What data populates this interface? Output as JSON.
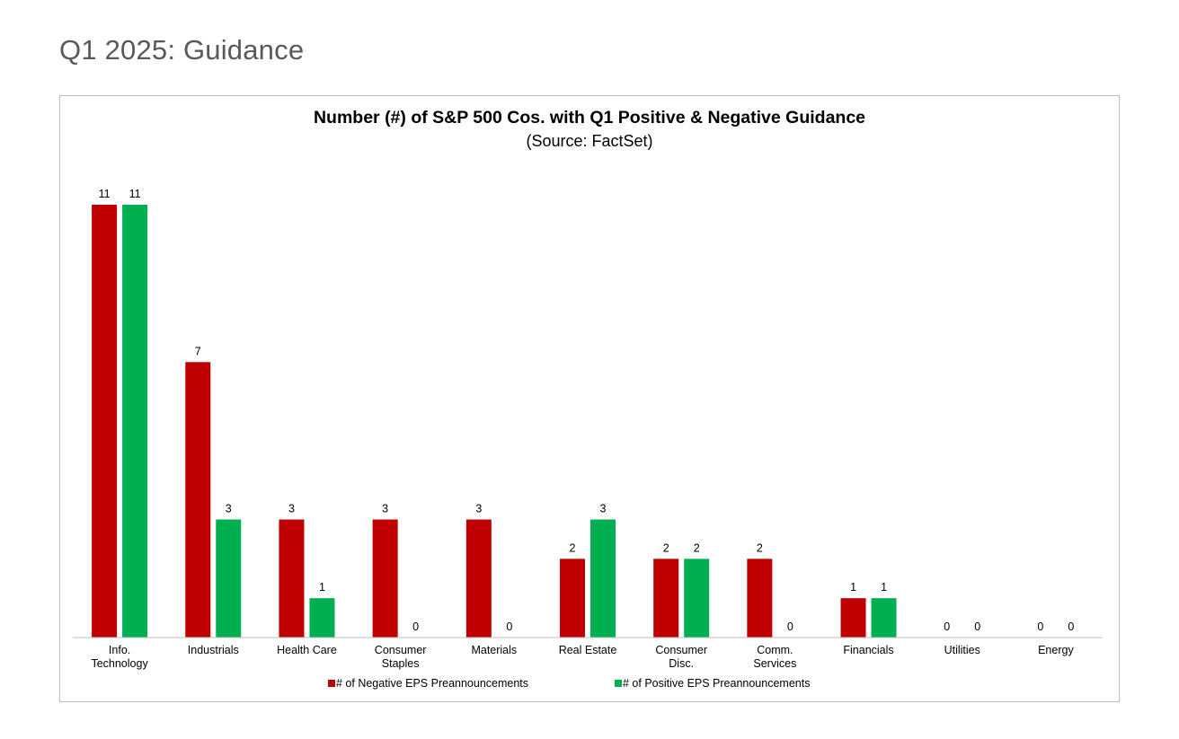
{
  "page": {
    "title": "Q1 2025: Guidance"
  },
  "colors": {
    "negative": "#c00000",
    "positive": "#00b050",
    "axis": "#bfbfbf",
    "text": "#000000"
  },
  "chart_data": {
    "type": "bar",
    "title": "Number (#) of S&P 500 Cos. with Q1 Positive & Negative Guidance",
    "subtitle": "(Source: FactSet)",
    "categories": [
      [
        "Info.",
        "Technology"
      ],
      [
        "Industrials"
      ],
      [
        "Health Care"
      ],
      [
        "Consumer",
        "Staples"
      ],
      [
        "Materials"
      ],
      [
        "Real Estate"
      ],
      [
        "Consumer",
        "Disc."
      ],
      [
        "Comm.",
        "Services"
      ],
      [
        "Financials"
      ],
      [
        "Utilities"
      ],
      [
        "Energy"
      ]
    ],
    "series": [
      {
        "name": "# of Negative EPS Preannouncements",
        "values": [
          11,
          7,
          3,
          3,
          3,
          2,
          2,
          2,
          1,
          0,
          0
        ],
        "color": "#c00000"
      },
      {
        "name": "# of Positive EPS Preannouncements",
        "values": [
          11,
          3,
          1,
          0,
          0,
          3,
          2,
          0,
          1,
          0,
          0
        ],
        "color": "#00b050"
      }
    ],
    "ylim": [
      0,
      11
    ],
    "grid": false,
    "data_labels": true,
    "legend_position": "bottom"
  }
}
